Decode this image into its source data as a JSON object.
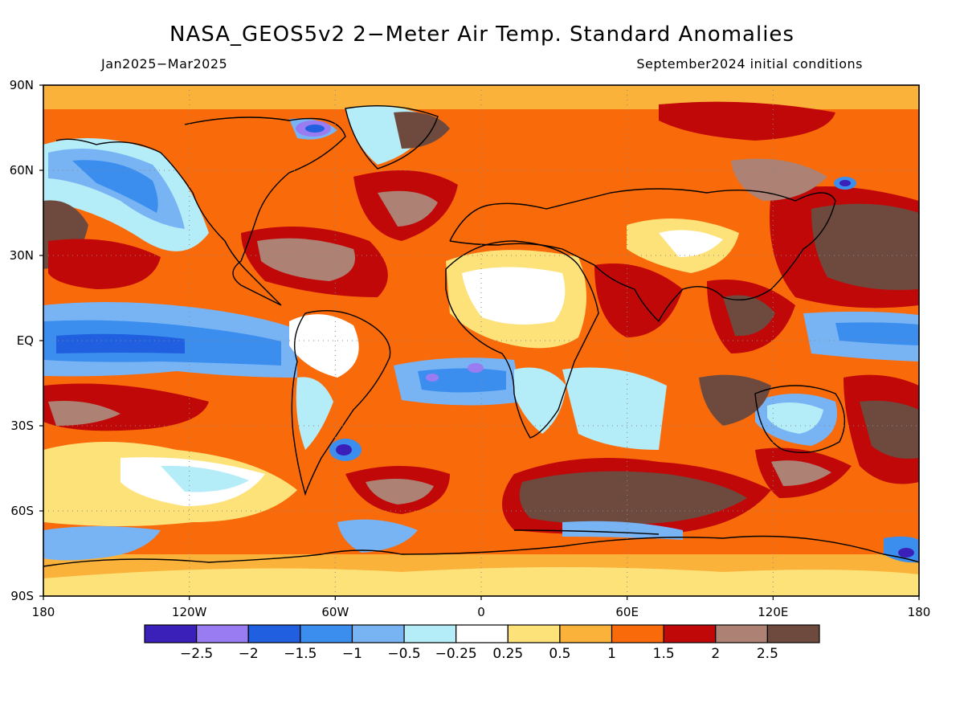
{
  "title": "NASA_GEOS5v2 2−Meter Air Temp. Standard Anomalies",
  "subtitle_left": "Jan2025−Mar2025",
  "subtitle_right": "September2024 initial conditions",
  "axes": {
    "lat_labels": [
      "90N",
      "60N",
      "30N",
      "EQ",
      "30S",
      "60S",
      "90S"
    ],
    "lon_labels": [
      "180",
      "120W",
      "60W",
      "0",
      "60E",
      "120E",
      "180"
    ]
  },
  "legend": {
    "colors": [
      "#3a1fb8",
      "#9a7cf2",
      "#1f5fe0",
      "#3b8eee",
      "#78b4f4",
      "#b4ecf8",
      "#ffffff",
      "#fde27a",
      "#fbb23a",
      "#f96a0a",
      "#c00808",
      "#ad8274",
      "#6e4a3e"
    ],
    "labels": [
      "−2.5",
      "−2",
      "−1.5",
      "−1",
      "−0.5",
      "−0.25",
      "0.25",
      "0.5",
      "1",
      "1.5",
      "2",
      "2.5"
    ]
  }
}
